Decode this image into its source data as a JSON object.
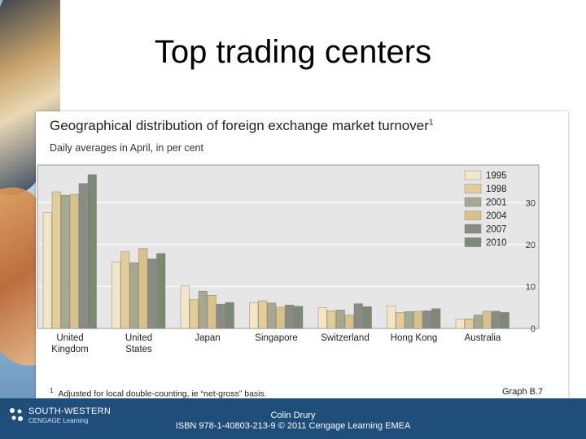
{
  "slide": {
    "title": "Top trading centers",
    "footer_author": "Colin Drury",
    "footer_isbn": "ISBN 978-1-40803-213-9 © 2011 Cengage Learning EMEA",
    "logo_brand": "SOUTH-WESTERN",
    "logo_sub": "CENGAGE Learning"
  },
  "chart_data": {
    "type": "bar",
    "title": "Geographical distribution of foreign exchange market turnover",
    "title_footnote_mark": "1",
    "subtitle": "Daily averages in April, in per cent",
    "categories": [
      "United Kingdom",
      "United States",
      "Japan",
      "Singapore",
      "Switzerland",
      "Hong Kong",
      "Australia"
    ],
    "category_lines": [
      [
        "United",
        "Kingdom"
      ],
      [
        "United",
        "States"
      ],
      [
        "Japan"
      ],
      [
        "Singapore"
      ],
      [
        "Switzerland"
      ],
      [
        "Hong Kong"
      ],
      [
        "Australia"
      ]
    ],
    "series": [
      {
        "name": "1995",
        "color": "#f2e6c4",
        "values": [
          27.6,
          15.9,
          10.2,
          6.2,
          5.0,
          5.4,
          2.2
        ]
      },
      {
        "name": "1998",
        "color": "#e3cc95",
        "values": [
          32.6,
          18.3,
          6.9,
          6.6,
          4.2,
          3.8,
          2.3
        ]
      },
      {
        "name": "2001",
        "color": "#a6a890",
        "values": [
          31.8,
          15.7,
          8.9,
          6.1,
          4.4,
          4.0,
          3.2
        ]
      },
      {
        "name": "2004",
        "color": "#d8c289",
        "values": [
          32.0,
          19.1,
          7.9,
          5.1,
          3.2,
          4.1,
          4.1
        ]
      },
      {
        "name": "2007",
        "color": "#8b8b86",
        "values": [
          34.6,
          16.6,
          5.8,
          5.6,
          5.9,
          4.2,
          4.1
        ]
      },
      {
        "name": "2010",
        "color": "#7b8a72",
        "values": [
          36.7,
          17.9,
          6.2,
          5.3,
          5.2,
          4.7,
          3.8
        ]
      }
    ],
    "ylim": [
      0,
      39
    ],
    "yticks": [
      0,
      10,
      20,
      30
    ],
    "y_axis_side": "right",
    "grid": true,
    "legend_position": "top-right",
    "footnote": "Adjusted for local double-counting, ie “net-gross” basis.",
    "footnote_mark": "1",
    "figure_ref": "Graph B.7",
    "colors": {
      "plot_bg": "#e6e6e6",
      "grid": "#ffffff",
      "border": "#9a9a9a"
    }
  }
}
